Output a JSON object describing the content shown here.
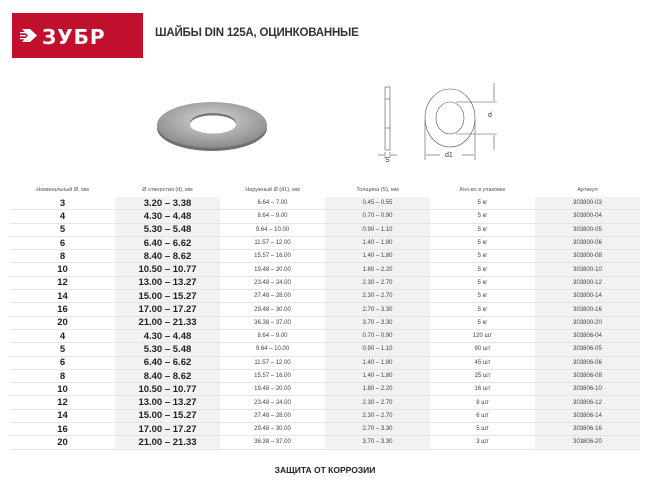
{
  "brand": {
    "logo_text": "ЗУБР",
    "color": "#c0102d"
  },
  "title": "ШАЙБЫ DIN 125A, ОЦИНКОВАННЫЕ",
  "diagram": {
    "label_d": "d",
    "label_d1": "d1",
    "label_s": "S"
  },
  "table": {
    "headers": [
      "Номинальный Ø, мм",
      "Ø отверстия (d), мм",
      "Наружный Ø (d1), мм",
      "Толщина (S), мм",
      "Кол-во в упаковке",
      "Артикул"
    ],
    "rows": [
      [
        "3",
        "3.20 – 3.38",
        "6.64 – 7.00",
        "0.45 – 0.55",
        "5 кг",
        "303800-03"
      ],
      [
        "4",
        "4.30 – 4.48",
        "8.64 – 9.00",
        "0.70 – 0.90",
        "5 кг",
        "303800-04"
      ],
      [
        "5",
        "5.30 – 5.48",
        "9.64 – 10.00",
        "0.90 – 1.10",
        "5 кг",
        "303800-05"
      ],
      [
        "6",
        "6.40 – 6.62",
        "11.57 – 12.00",
        "1.40 – 1.80",
        "5 кг",
        "303800-06"
      ],
      [
        "8",
        "8.40 – 8.62",
        "15.57 – 16.00",
        "1.40 – 1.80",
        "5 кг",
        "303800-08"
      ],
      [
        "10",
        "10.50 – 10.77",
        "19.48 – 20.00",
        "1.80 – 2.20",
        "5 кг",
        "303800-10"
      ],
      [
        "12",
        "13.00 – 13.27",
        "23.48 – 24.00",
        "2.30 – 2.70",
        "5 кг",
        "303800-12"
      ],
      [
        "14",
        "15.00 – 15.27",
        "27.48 – 28.00",
        "2.30 – 2.70",
        "5 кг",
        "303800-14"
      ],
      [
        "16",
        "17.00 – 17.27",
        "29.48 – 30.00",
        "2.70 – 3.30",
        "5 кг",
        "303800-16"
      ],
      [
        "20",
        "21.00 – 21.33",
        "36.38 – 37.00",
        "3.70 – 3.30",
        "5 кг",
        "303800-20"
      ],
      [
        "4",
        "4.30 – 4.48",
        "8.64 – 9.00",
        "0.70 – 0.90",
        "120 шт",
        "303806-04"
      ],
      [
        "5",
        "5.30 – 5.48",
        "9.64 – 10.00",
        "0.90 – 1.10",
        "90 шт",
        "303806-05"
      ],
      [
        "6",
        "6.40 – 6.62",
        "11.57 – 12.00",
        "1.40 – 1.80",
        "45 шт",
        "303806-06"
      ],
      [
        "8",
        "8.40 – 8.62",
        "15.57 – 16.00",
        "1.40 – 1.80",
        "25 шт",
        "303806-08"
      ],
      [
        "10",
        "10.50 – 10.77",
        "19.48 – 20.00",
        "1.80 – 2.20",
        "16 шт",
        "303806-10"
      ],
      [
        "12",
        "13.00 – 13.27",
        "23.48 – 24.00",
        "2.30 – 2.70",
        "8 шт",
        "303806-12"
      ],
      [
        "14",
        "15.00 – 15.27",
        "27.48 – 28.00",
        "2.30 – 2.70",
        "6 шт",
        "303806-14"
      ],
      [
        "16",
        "17.00 – 17.27",
        "29.48 – 30.00",
        "2.70 – 3.30",
        "5 шт",
        "303806-16"
      ],
      [
        "20",
        "21.00 – 21.33",
        "36.38 – 37.00",
        "3.70 – 3.30",
        "3 шт",
        "303806-20"
      ]
    ]
  },
  "footer": "ЗАЩИТА ОТ КОРРОЗИИ"
}
